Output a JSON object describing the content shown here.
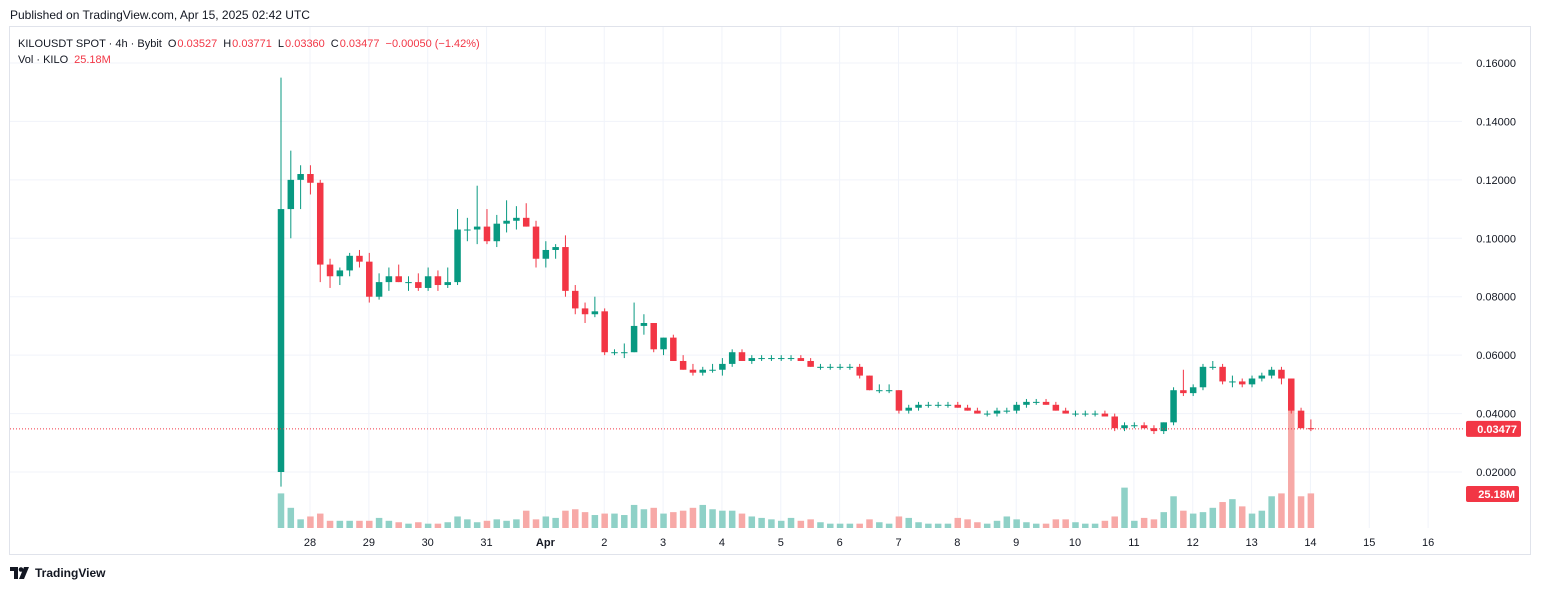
{
  "header": {
    "published": "Published on TradingView.com, Apr 15, 2025 02:42 UTC"
  },
  "legend": {
    "symbol": "KILOUSDT SPOT · 4h · Bybit",
    "o_label": "O",
    "o_value": "0.03527",
    "h_label": "H",
    "h_value": "0.03771",
    "l_label": "L",
    "l_value": "0.03360",
    "c_label": "C",
    "c_value": "0.03477",
    "change": "−0.00050 (−1.42%)",
    "vol_label": "Vol · KILO",
    "vol_value": "25.18M"
  },
  "footer": {
    "brand": "TradingView"
  },
  "colors": {
    "up": "#089981",
    "down": "#f23645",
    "vol_up": "#8fd1c7",
    "vol_down": "#f7a9a7",
    "grid": "#f0f3fa",
    "axis_text": "#131722"
  },
  "chart_data": {
    "type": "candlestick",
    "interval": "4h",
    "y_axis": {
      "ticks": [
        "0.16000",
        "0.14000",
        "0.12000",
        "0.10000",
        "0.08000",
        "0.06000",
        "0.04000",
        "0.02000"
      ],
      "range": [
        0.0,
        0.17
      ]
    },
    "x_axis": {
      "ticks": [
        "28",
        "29",
        "30",
        "31",
        "Apr",
        "2",
        "3",
        "4",
        "5",
        "6",
        "7",
        "8",
        "9",
        "10",
        "11",
        "12",
        "13",
        "14",
        "15",
        "16"
      ]
    },
    "last_price": {
      "value": 0.03477,
      "label": "0.03477"
    },
    "last_volume": {
      "value": 25.18,
      "label": "25.18M"
    },
    "volume_max": 43,
    "candles": [
      [
        0.02,
        0.155,
        0.015,
        0.11,
        12
      ],
      [
        0.11,
        0.13,
        0.1,
        0.12,
        7
      ],
      [
        0.12,
        0.125,
        0.11,
        0.122,
        3
      ],
      [
        0.122,
        0.125,
        0.115,
        0.119,
        4
      ],
      [
        0.119,
        0.12,
        0.085,
        0.091,
        5
      ],
      [
        0.091,
        0.093,
        0.083,
        0.087,
        2.5
      ],
      [
        0.087,
        0.09,
        0.084,
        0.089,
        2.5
      ],
      [
        0.089,
        0.095,
        0.087,
        0.094,
        2.5
      ],
      [
        0.094,
        0.096,
        0.09,
        0.092,
        2.5
      ],
      [
        0.092,
        0.095,
        0.078,
        0.08,
        2.5
      ],
      [
        0.08,
        0.088,
        0.079,
        0.085,
        3.5
      ],
      [
        0.085,
        0.09,
        0.082,
        0.087,
        2.5
      ],
      [
        0.087,
        0.091,
        0.085,
        0.085,
        2
      ],
      [
        0.085,
        0.087,
        0.082,
        0.085,
        1.5
      ],
      [
        0.085,
        0.088,
        0.082,
        0.083,
        2
      ],
      [
        0.083,
        0.09,
        0.082,
        0.087,
        1.5
      ],
      [
        0.087,
        0.089,
        0.082,
        0.084,
        1.5
      ],
      [
        0.084,
        0.09,
        0.083,
        0.085,
        2
      ],
      [
        0.085,
        0.11,
        0.084,
        0.103,
        4
      ],
      [
        0.103,
        0.107,
        0.099,
        0.103,
        3
      ],
      [
        0.103,
        0.118,
        0.098,
        0.104,
        2
      ],
      [
        0.104,
        0.11,
        0.098,
        0.099,
        2.5
      ],
      [
        0.099,
        0.108,
        0.097,
        0.105,
        3
      ],
      [
        0.105,
        0.113,
        0.102,
        0.106,
        2.5
      ],
      [
        0.106,
        0.111,
        0.103,
        0.107,
        3
      ],
      [
        0.107,
        0.112,
        0.104,
        0.104,
        6
      ],
      [
        0.104,
        0.106,
        0.09,
        0.093,
        3
      ],
      [
        0.093,
        0.099,
        0.09,
        0.096,
        4
      ],
      [
        0.096,
        0.098,
        0.093,
        0.097,
        3.5
      ],
      [
        0.097,
        0.101,
        0.08,
        0.082,
        6
      ],
      [
        0.082,
        0.084,
        0.074,
        0.076,
        6.5
      ],
      [
        0.076,
        0.078,
        0.071,
        0.074,
        5.5
      ],
      [
        0.074,
        0.08,
        0.073,
        0.075,
        4.5
      ],
      [
        0.075,
        0.076,
        0.06,
        0.061,
        5
      ],
      [
        0.061,
        0.062,
        0.06,
        0.061,
        5
      ],
      [
        0.061,
        0.064,
        0.059,
        0.061,
        4.5
      ],
      [
        0.061,
        0.078,
        0.061,
        0.07,
        8
      ],
      [
        0.07,
        0.074,
        0.067,
        0.071,
        6.5
      ],
      [
        0.071,
        0.071,
        0.061,
        0.062,
        7
      ],
      [
        0.062,
        0.066,
        0.06,
        0.066,
        5
      ],
      [
        0.066,
        0.067,
        0.058,
        0.058,
        5.5
      ],
      [
        0.058,
        0.06,
        0.055,
        0.055,
        6
      ],
      [
        0.055,
        0.057,
        0.053,
        0.054,
        7
      ],
      [
        0.054,
        0.056,
        0.053,
        0.055,
        8
      ],
      [
        0.055,
        0.057,
        0.054,
        0.055,
        6.5
      ],
      [
        0.055,
        0.059,
        0.053,
        0.057,
        6
      ],
      [
        0.057,
        0.062,
        0.056,
        0.061,
        6
      ],
      [
        0.061,
        0.062,
        0.058,
        0.058,
        5
      ],
      [
        0.058,
        0.06,
        0.057,
        0.059,
        4
      ],
      [
        0.059,
        0.06,
        0.058,
        0.059,
        3.5
      ],
      [
        0.059,
        0.06,
        0.058,
        0.059,
        3
      ],
      [
        0.059,
        0.06,
        0.058,
        0.059,
        2.5
      ],
      [
        0.059,
        0.06,
        0.058,
        0.059,
        3.5
      ],
      [
        0.059,
        0.06,
        0.058,
        0.058,
        2.5
      ],
      [
        0.058,
        0.059,
        0.056,
        0.056,
        3
      ],
      [
        0.056,
        0.057,
        0.055,
        0.056,
        2
      ],
      [
        0.056,
        0.057,
        0.055,
        0.056,
        1.5
      ],
      [
        0.056,
        0.057,
        0.055,
        0.056,
        1.5
      ],
      [
        0.056,
        0.057,
        0.055,
        0.056,
        1.5
      ],
      [
        0.056,
        0.057,
        0.052,
        0.053,
        1.5
      ],
      [
        0.053,
        0.053,
        0.048,
        0.048,
        3
      ],
      [
        0.048,
        0.05,
        0.047,
        0.048,
        2
      ],
      [
        0.048,
        0.05,
        0.047,
        0.048,
        1.5
      ],
      [
        0.048,
        0.048,
        0.04,
        0.041,
        4
      ],
      [
        0.041,
        0.043,
        0.04,
        0.042,
        3.5
      ],
      [
        0.042,
        0.044,
        0.041,
        0.043,
        2
      ],
      [
        0.043,
        0.044,
        0.042,
        0.043,
        1.5
      ],
      [
        0.043,
        0.044,
        0.042,
        0.043,
        1.5
      ],
      [
        0.043,
        0.044,
        0.042,
        0.043,
        1.5
      ],
      [
        0.043,
        0.044,
        0.042,
        0.042,
        3.5
      ],
      [
        0.042,
        0.043,
        0.041,
        0.041,
        3
      ],
      [
        0.041,
        0.042,
        0.04,
        0.04,
        2
      ],
      [
        0.04,
        0.041,
        0.039,
        0.04,
        1.5
      ],
      [
        0.04,
        0.042,
        0.039,
        0.041,
        2.5
      ],
      [
        0.041,
        0.042,
        0.04,
        0.041,
        4
      ],
      [
        0.041,
        0.044,
        0.04,
        0.043,
        3
      ],
      [
        0.043,
        0.045,
        0.042,
        0.044,
        2
      ],
      [
        0.044,
        0.045,
        0.043,
        0.044,
        1.5
      ],
      [
        0.044,
        0.045,
        0.043,
        0.043,
        1.5
      ],
      [
        0.043,
        0.044,
        0.041,
        0.041,
        3
      ],
      [
        0.041,
        0.042,
        0.04,
        0.04,
        3
      ],
      [
        0.04,
        0.041,
        0.039,
        0.04,
        2
      ],
      [
        0.04,
        0.041,
        0.039,
        0.04,
        1.5
      ],
      [
        0.04,
        0.041,
        0.039,
        0.04,
        1.5
      ],
      [
        0.04,
        0.041,
        0.039,
        0.039,
        2.5
      ],
      [
        0.039,
        0.04,
        0.034,
        0.035,
        4
      ],
      [
        0.035,
        0.037,
        0.034,
        0.036,
        14
      ],
      [
        0.036,
        0.037,
        0.035,
        0.036,
        2.5
      ],
      [
        0.036,
        0.037,
        0.035,
        0.035,
        3.5
      ],
      [
        0.035,
        0.036,
        0.033,
        0.034,
        3
      ],
      [
        0.034,
        0.037,
        0.033,
        0.037,
        5.5
      ],
      [
        0.037,
        0.049,
        0.036,
        0.048,
        11
      ],
      [
        0.048,
        0.055,
        0.046,
        0.047,
        6
      ],
      [
        0.047,
        0.05,
        0.046,
        0.049,
        5
      ],
      [
        0.049,
        0.057,
        0.048,
        0.056,
        5.5
      ],
      [
        0.056,
        0.058,
        0.055,
        0.056,
        7
      ],
      [
        0.056,
        0.057,
        0.05,
        0.051,
        9
      ],
      [
        0.051,
        0.053,
        0.049,
        0.051,
        10
      ],
      [
        0.051,
        0.052,
        0.049,
        0.05,
        7.5
      ],
      [
        0.05,
        0.053,
        0.049,
        0.052,
        5
      ],
      [
        0.052,
        0.054,
        0.051,
        0.053,
        6
      ],
      [
        0.053,
        0.056,
        0.052,
        0.055,
        11
      ],
      [
        0.055,
        0.056,
        0.05,
        0.052,
        12
      ],
      [
        0.052,
        0.052,
        0.04,
        0.041,
        43
      ],
      [
        0.041,
        0.042,
        0.035,
        0.035,
        11
      ],
      [
        0.035,
        0.038,
        0.034,
        0.0348,
        12
      ]
    ]
  }
}
